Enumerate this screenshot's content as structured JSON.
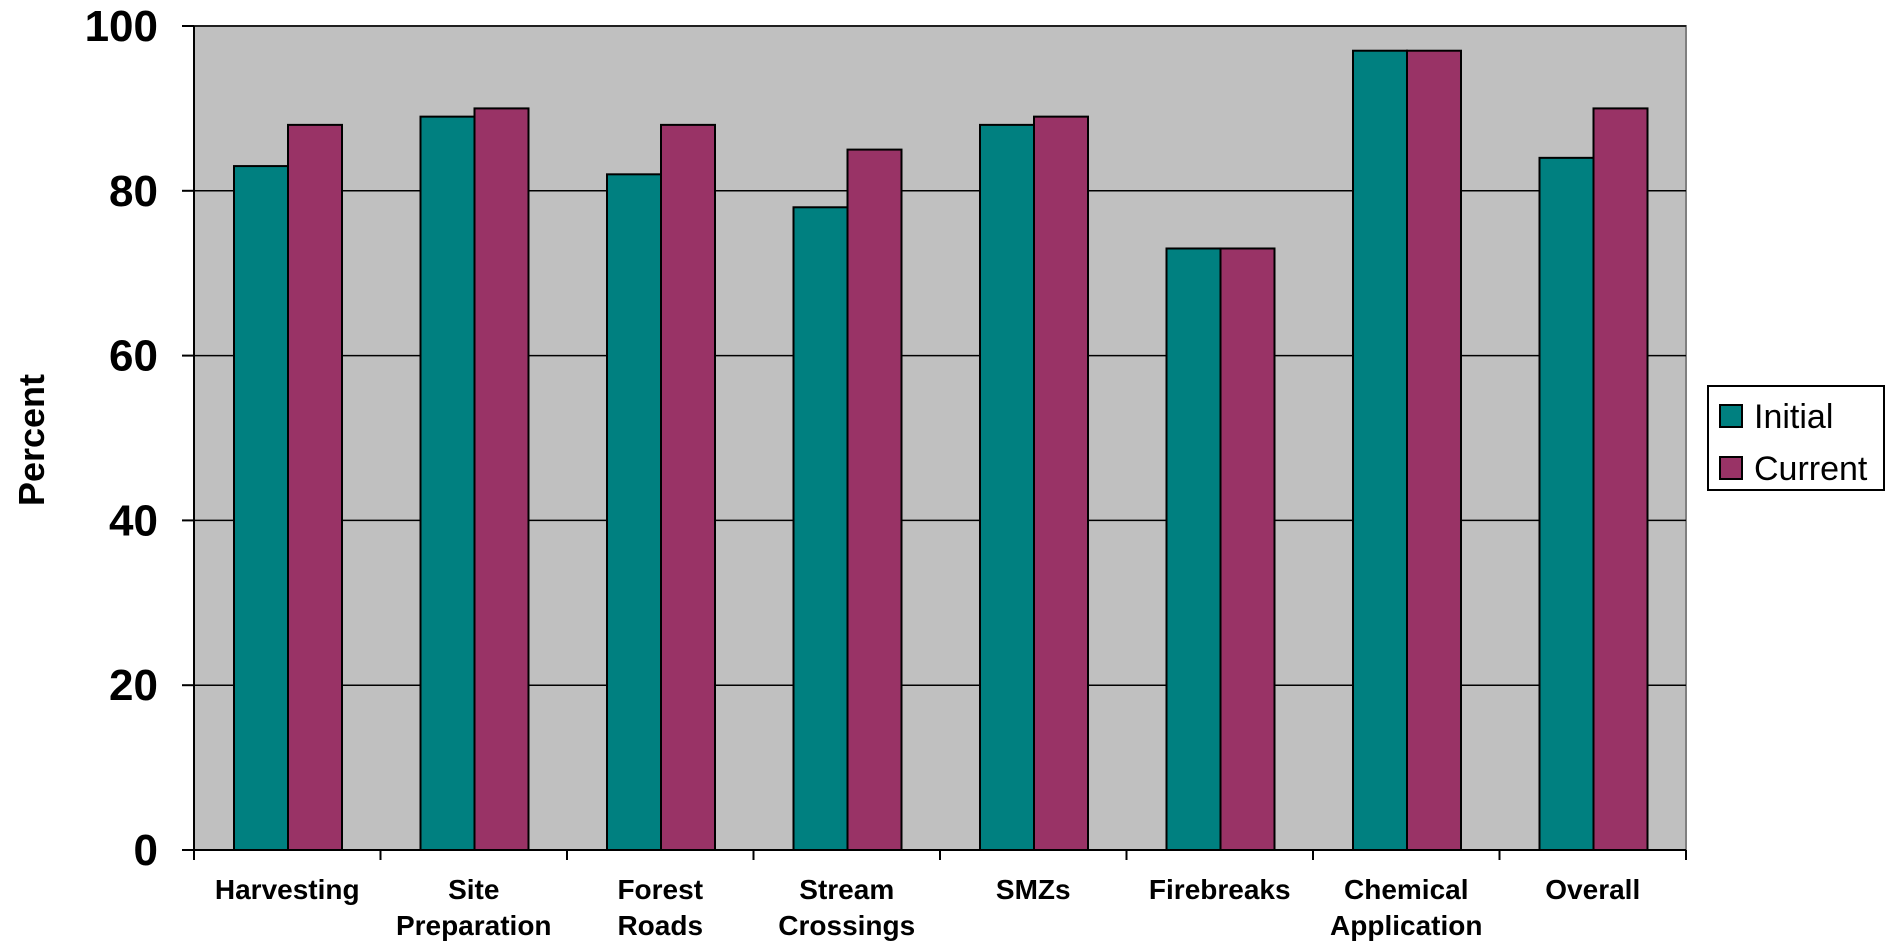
{
  "chart_data": {
    "type": "bar",
    "title": "",
    "xlabel": "",
    "ylabel": "Percent",
    "ylim": [
      0,
      100
    ],
    "yticks": [
      "0",
      "20",
      "40",
      "60",
      "80",
      "100"
    ],
    "categories": [
      [
        "Harvesting"
      ],
      [
        "Site",
        "Preparation"
      ],
      [
        "Forest",
        "Roads"
      ],
      [
        "Stream",
        "Crossings"
      ],
      [
        "SMZs"
      ],
      [
        "Firebreaks"
      ],
      [
        "Chemical",
        "Application"
      ],
      [
        "Overall"
      ]
    ],
    "series": [
      {
        "name": "Initial",
        "color": "#008080",
        "values": [
          83,
          89,
          82,
          78,
          88,
          73,
          97,
          84
        ]
      },
      {
        "name": "Current",
        "color": "#993366",
        "values": [
          88,
          90,
          88,
          85,
          89,
          73,
          97,
          90
        ]
      }
    ],
    "grid": true,
    "plot_background": "#c0c0c0",
    "legend_position": "right"
  }
}
